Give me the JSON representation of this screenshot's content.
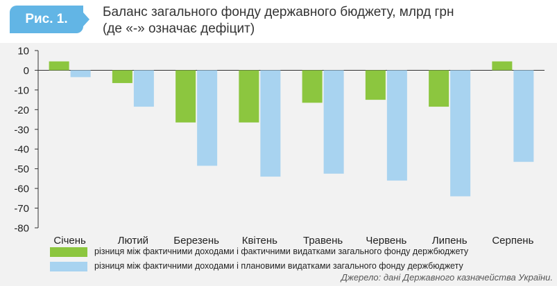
{
  "figure_label": "Рис. 1.",
  "title_line1": "Баланс загального фонду державного бюджету, млрд грн",
  "title_line2": "(де «-» означає дефіцит)",
  "colors": {
    "badge": "#62b5e5",
    "series_1": "#8cc63f",
    "series_2": "#a8d3f0",
    "panel_bg": "#f2f2f2",
    "axis": "#333333"
  },
  "chart_data": {
    "type": "bar",
    "categories": [
      "Січень",
      "Лютий",
      "Березень",
      "Квітень",
      "Травень",
      "Червень",
      "Липень",
      "Серпень"
    ],
    "series": [
      {
        "name": "різниця між фактичними доходами і фактичними видатками загального фонду держбюджету",
        "values": [
          4.5,
          -6.5,
          -26.5,
          -26.5,
          -16.5,
          -15,
          -18.5,
          4.5
        ]
      },
      {
        "name": "різниця між фактичними доходами і плановими видатками загального фонду держбюджету",
        "values": [
          -3.5,
          -18.5,
          -48.5,
          -54,
          -52.5,
          -56,
          -64,
          -46.5
        ]
      }
    ],
    "ylim": [
      -80,
      10
    ],
    "yticks": [
      10,
      0,
      -10,
      -20,
      -30,
      -40,
      -50,
      -60,
      -70,
      -80
    ],
    "grid": false,
    "legend": "bottom"
  },
  "source": "Джерело: дані Державного казначейства України."
}
